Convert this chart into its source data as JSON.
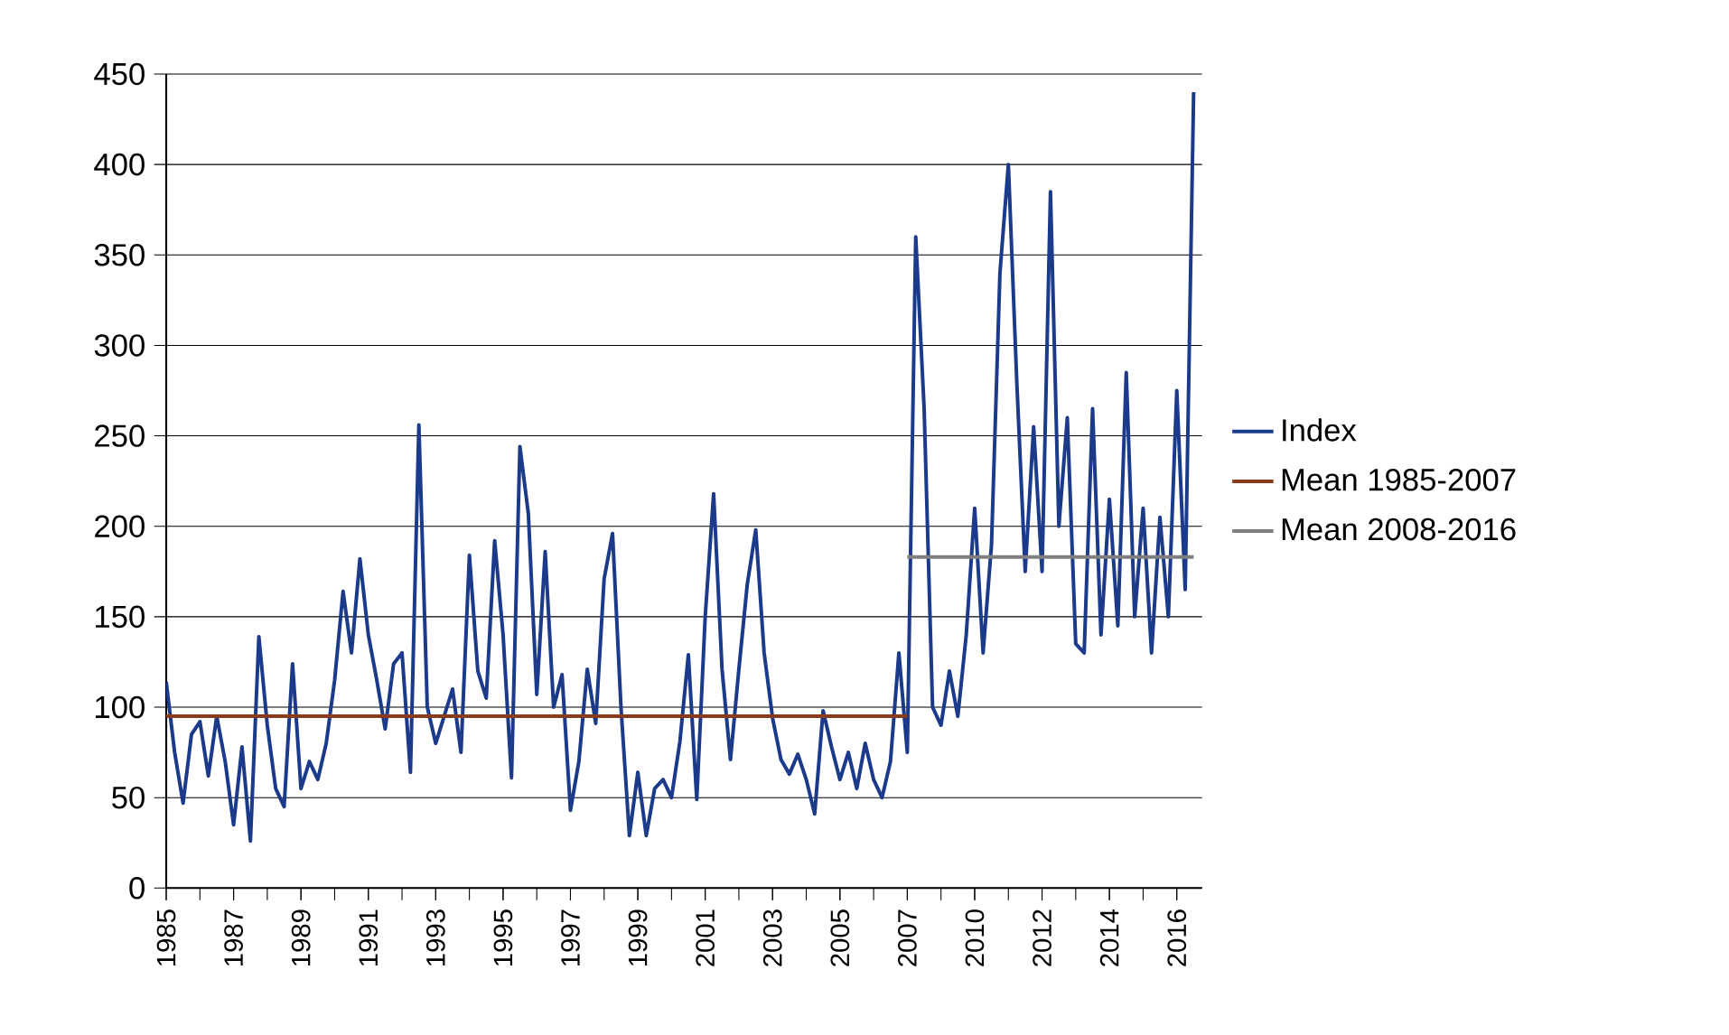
{
  "chart_data": {
    "type": "line",
    "categories": [
      "1985",
      null,
      null,
      null,
      null,
      null,
      null,
      null,
      "1987",
      null,
      null,
      null,
      null,
      null,
      null,
      null,
      "1989",
      null,
      null,
      null,
      null,
      null,
      null,
      null,
      "1991",
      null,
      null,
      null,
      null,
      null,
      null,
      null,
      "1993",
      null,
      null,
      null,
      null,
      null,
      null,
      null,
      "1995",
      null,
      null,
      null,
      null,
      null,
      null,
      null,
      "1997",
      null,
      null,
      null,
      null,
      null,
      null,
      null,
      "1999",
      null,
      null,
      null,
      null,
      null,
      null,
      null,
      "2001",
      null,
      null,
      null,
      null,
      null,
      null,
      null,
      "2003",
      null,
      null,
      null,
      null,
      null,
      null,
      null,
      "2005",
      null,
      null,
      null,
      null,
      null,
      null,
      null,
      "2007",
      null,
      null,
      null,
      null,
      null,
      null,
      null,
      "2010",
      null,
      null,
      null,
      null,
      null,
      null,
      null,
      "2012",
      null,
      null,
      null,
      null,
      null,
      null,
      null,
      "2014",
      null,
      null,
      null,
      null,
      null,
      null,
      null,
      "2016",
      null,
      null
    ],
    "series": [
      {
        "name": "Index",
        "color": "#1c3a8a",
        "values": [
          114,
          75,
          47,
          85,
          92,
          62,
          95,
          70,
          35,
          78,
          26,
          139,
          90,
          55,
          45,
          124,
          55,
          70,
          60,
          80,
          115,
          164,
          130,
          182,
          140,
          115,
          88,
          124,
          130,
          64,
          256,
          100,
          80,
          95,
          110,
          75,
          184,
          120,
          105,
          192,
          140,
          61,
          244,
          207,
          107,
          186,
          100,
          118,
          43,
          70,
          121,
          91,
          171,
          196,
          100,
          29,
          64,
          29,
          55,
          60,
          50,
          81,
          129,
          49,
          150,
          218,
          121,
          71,
          121,
          168,
          198,
          130,
          94,
          71,
          63,
          74,
          60,
          41,
          98,
          78,
          60,
          75,
          55,
          80,
          60,
          50,
          70,
          130,
          75,
          360,
          265,
          100,
          90,
          120,
          95,
          140,
          210,
          130,
          190,
          340,
          400,
          280,
          175,
          255,
          175,
          385,
          200,
          260,
          135,
          130,
          265,
          140,
          215,
          145,
          285,
          150,
          210,
          130,
          205,
          150,
          275,
          165,
          440
        ]
      },
      {
        "name": "Mean 1985-2007",
        "color": "#8b3a1a",
        "values": [
          95,
          95,
          95,
          95,
          95,
          95,
          95,
          95,
          95,
          95,
          95,
          95,
          95,
          95,
          95,
          95,
          95,
          95,
          95,
          95,
          95,
          95,
          95,
          95,
          95,
          95,
          95,
          95,
          95,
          95,
          95,
          95,
          95,
          95,
          95,
          95,
          95,
          95,
          95,
          95,
          95,
          95,
          95,
          95,
          95,
          95,
          95,
          95,
          95,
          95,
          95,
          95,
          95,
          95,
          95,
          95,
          95,
          95,
          95,
          95,
          95,
          95,
          95,
          95,
          95,
          95,
          95,
          95,
          95,
          95,
          95,
          95,
          95,
          95,
          95,
          95,
          95,
          95,
          95,
          95,
          95,
          95,
          95,
          95,
          95,
          95,
          95,
          95,
          95,
          null,
          null,
          null,
          null,
          null,
          null,
          null,
          null,
          null,
          null,
          null,
          null,
          null,
          null,
          null,
          null,
          null,
          null,
          null,
          null,
          null,
          null,
          null,
          null,
          null,
          null,
          null,
          null,
          null,
          null,
          null,
          null,
          null,
          null
        ]
      },
      {
        "name": "Mean 2008-2016",
        "color": "#7f7f7f",
        "values": [
          null,
          null,
          null,
          null,
          null,
          null,
          null,
          null,
          null,
          null,
          null,
          null,
          null,
          null,
          null,
          null,
          null,
          null,
          null,
          null,
          null,
          null,
          null,
          null,
          null,
          null,
          null,
          null,
          null,
          null,
          null,
          null,
          null,
          null,
          null,
          null,
          null,
          null,
          null,
          null,
          null,
          null,
          null,
          null,
          null,
          null,
          null,
          null,
          null,
          null,
          null,
          null,
          null,
          null,
          null,
          null,
          null,
          null,
          null,
          null,
          null,
          null,
          null,
          null,
          null,
          null,
          null,
          null,
          null,
          null,
          null,
          null,
          null,
          null,
          null,
          null,
          null,
          null,
          null,
          null,
          null,
          null,
          null,
          null,
          null,
          null,
          null,
          null,
          183,
          183,
          183,
          183,
          183,
          183,
          183,
          183,
          183,
          183,
          183,
          183,
          183,
          183,
          183,
          183,
          183,
          183,
          183,
          183,
          183,
          183,
          183,
          183,
          183,
          183,
          183,
          183,
          183,
          183,
          183,
          183,
          183,
          183,
          183
        ]
      }
    ],
    "ylim": [
      0,
      450
    ],
    "yticks": [
      0,
      50,
      100,
      150,
      200,
      250,
      300,
      350,
      400,
      450
    ],
    "grid": "y",
    "legend": "right"
  }
}
